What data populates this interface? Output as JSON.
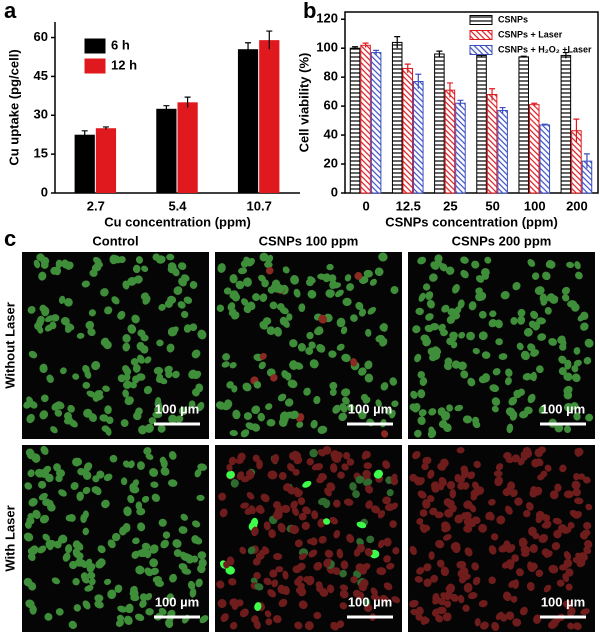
{
  "chart_data": [
    {
      "type": "bar",
      "panel_label": "a",
      "x_label": "Cu concentration (ppm)",
      "y_label": "Cu uptake (pg/cell)",
      "categories": [
        "2.7",
        "5.4",
        "10.7"
      ],
      "series": [
        {
          "name": "6 h",
          "color": "#000000",
          "values": [
            22.5,
            32.5,
            55.5
          ],
          "errors": [
            1.5,
            1.2,
            2.5
          ]
        },
        {
          "name": "12 h",
          "color": "#e0191e",
          "values": [
            25,
            35,
            59
          ],
          "errors": [
            0.5,
            2,
            3.5
          ]
        }
      ],
      "ylim": [
        0,
        66
      ],
      "yticks": [
        0,
        15,
        30,
        45,
        60
      ],
      "legend": "upper left"
    },
    {
      "type": "bar",
      "panel_label": "b",
      "x_label": "CSNPs concentration (ppm)",
      "y_label": "Cell viability (%)",
      "categories": [
        "0",
        "12.5",
        "25",
        "50",
        "100",
        "200"
      ],
      "series": [
        {
          "name": "CSNPs",
          "color": "#000000",
          "hatch": "horizontal",
          "values": [
            100,
            104,
            96,
            95,
            94,
            95
          ],
          "errors": [
            1,
            4,
            2,
            1,
            0.5,
            2
          ]
        },
        {
          "name": "CSNPs + Laser",
          "color": "#e0191e",
          "hatch": "diagonal",
          "values": [
            102,
            86,
            71,
            68,
            61,
            43
          ],
          "errors": [
            1.5,
            3,
            5,
            4,
            1,
            8
          ]
        },
        {
          "name": "CSNPs + H₂O₂ +Laser",
          "color": "#3a4fc0",
          "hatch": "diagonal",
          "values": [
            97,
            77,
            62,
            57,
            47,
            22
          ],
          "errors": [
            1.5,
            5,
            2,
            2,
            0.5,
            5
          ]
        }
      ],
      "ylim": [
        0,
        125
      ],
      "yticks": [
        0,
        20,
        40,
        60,
        80,
        100,
        120
      ],
      "legend": "upper right",
      "frame": true
    }
  ],
  "panel_c": {
    "label": "c",
    "columns": [
      "Control",
      "CSNPs 100 ppm",
      "CSNPs 200 ppm"
    ],
    "rows": [
      "Without Laser",
      "With Laser"
    ],
    "scale_bars": [
      "100 µm",
      "100 µm",
      "100 µm",
      "100 µm",
      "100 µm",
      "100 µm"
    ]
  }
}
